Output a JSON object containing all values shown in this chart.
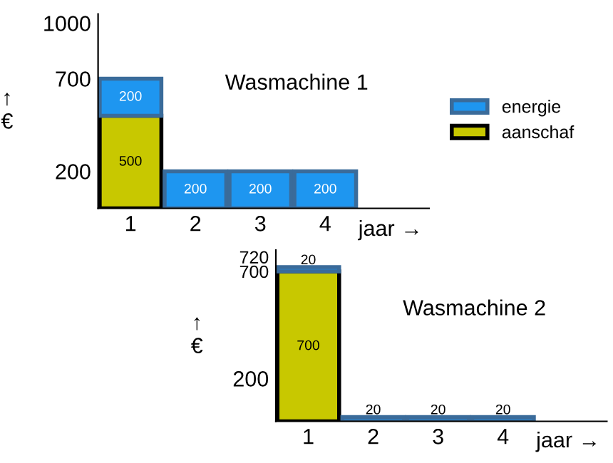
{
  "chart_data": [
    {
      "type": "bar",
      "title": "Wasmachine 1",
      "xlabel": "jaar →",
      "ylabel": "↑\n€",
      "categories": [
        "1",
        "2",
        "3",
        "4"
      ],
      "stacked": true,
      "series": [
        {
          "name": "aanschaf",
          "color": "#c8c800",
          "values": [
            500,
            null,
            null,
            null
          ]
        },
        {
          "name": "energie",
          "color": "#1e96f0",
          "values": [
            200,
            200,
            200,
            200
          ]
        }
      ],
      "ylim": [
        0,
        1050
      ],
      "yticks": [
        200,
        700,
        1000
      ],
      "data_labels": true,
      "legend": "right",
      "grid": false
    },
    {
      "type": "bar",
      "title": "Wasmachine 2",
      "xlabel": "jaar →",
      "ylabel": "↑\n€",
      "categories": [
        "1",
        "2",
        "3",
        "4"
      ],
      "stacked": true,
      "series": [
        {
          "color": "#c8c800",
          "values": [
            700,
            null,
            null,
            null
          ]
        },
        {
          "color": "#1e96f0",
          "values": [
            20,
            20,
            20,
            20
          ]
        }
      ],
      "ylim": [
        0,
        800
      ],
      "yticks": [
        200,
        700,
        720
      ],
      "data_labels": true,
      "legend": false,
      "grid": false
    }
  ]
}
